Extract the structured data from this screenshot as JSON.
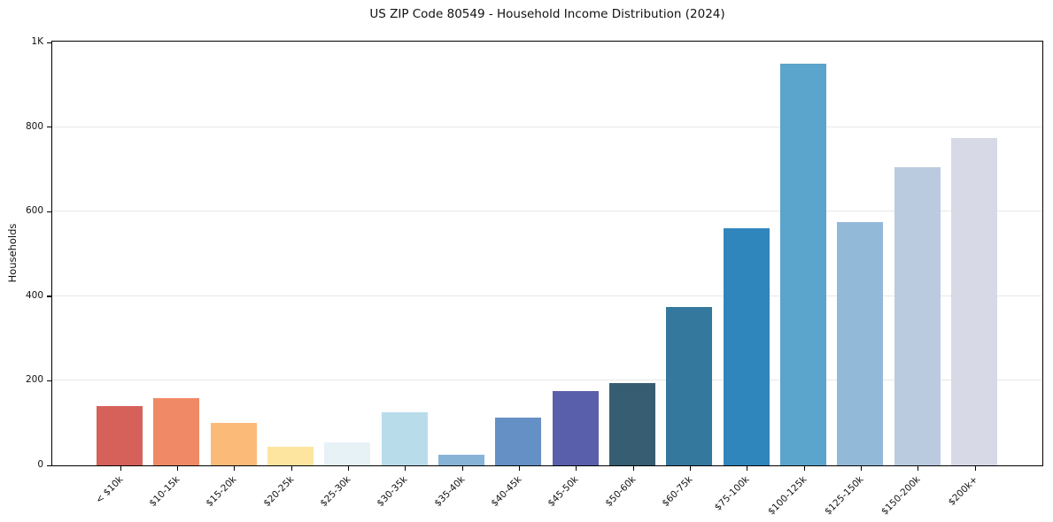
{
  "chart_data": {
    "type": "bar",
    "title": "US ZIP Code 80549 - Household Income Distribution (2024)",
    "xlabel": "",
    "ylabel": "Households",
    "ylim": [
      0,
      1000
    ],
    "grid": "horizontal-light-gray",
    "legend": "none",
    "categories": [
      "< $10k",
      "$10-15k",
      "$15-20k",
      "$20-25k",
      "$25-30k",
      "$30-35k",
      "$35-40k",
      "$40-45k",
      "$45-50k",
      "$50-60k",
      "$60-75k",
      "$75-100k",
      "$100-125k",
      "$125-150k",
      "$150-200k",
      "$200k+"
    ],
    "values": [
      140,
      160,
      100,
      45,
      55,
      125,
      26,
      112,
      175,
      195,
      375,
      560,
      950,
      575,
      705,
      775
    ],
    "bar_colors": [
      "#d6605a",
      "#f08a66",
      "#fcba79",
      "#fde59f",
      "#e7f2f7",
      "#b8dcea",
      "#87b3d7",
      "#6590c5",
      "#5a5fac",
      "#365d72",
      "#35789e",
      "#2f86bd",
      "#5ba4cc",
      "#93b9d9",
      "#bacbdf",
      "#d8d9e6"
    ],
    "yticks": [
      {
        "value": 0,
        "label": "0"
      },
      {
        "value": 200,
        "label": "200"
      },
      {
        "value": 400,
        "label": "400"
      },
      {
        "value": 600,
        "label": "600"
      },
      {
        "value": 800,
        "label": "800"
      },
      {
        "value": 1000,
        "label": "1K"
      }
    ],
    "axis_color": "#000000",
    "gridline_color": "#e7e7e7",
    "background_color": "#ffffff"
  }
}
